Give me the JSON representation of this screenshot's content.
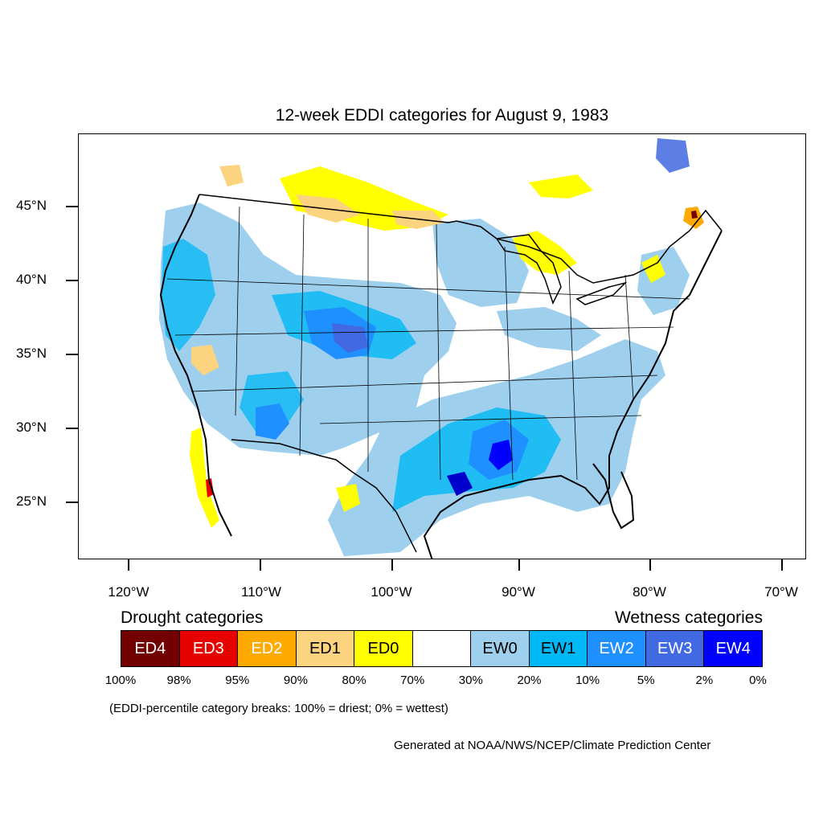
{
  "title": "12-week EDDI categories for August 9, 1983",
  "lat_labels": [
    "45°N",
    "40°N",
    "35°N",
    "30°N",
    "25°N"
  ],
  "lon_labels": [
    "120°W",
    "110°W",
    "100°W",
    "90°W",
    "80°W",
    "70°W"
  ],
  "legend": {
    "drought_heading": "Drought categories",
    "wetness_heading": "Wetness categories",
    "categories": [
      {
        "label": "ED4",
        "color": "#730000",
        "text_color": "#ffffff"
      },
      {
        "label": "ED3",
        "color": "#e60000",
        "text_color": "#ffffff"
      },
      {
        "label": "ED2",
        "color": "#ffaa00",
        "text_color": "#ffffff"
      },
      {
        "label": "ED1",
        "color": "#fcd37f",
        "text_color": "#000000"
      },
      {
        "label": "ED0",
        "color": "#ffff00",
        "text_color": "#000000"
      },
      {
        "label": "",
        "color": "#ffffff",
        "text_color": "#000000"
      },
      {
        "label": "EW0",
        "color": "#9ed0ee",
        "text_color": "#000000"
      },
      {
        "label": "EW1",
        "color": "#00b8f5",
        "text_color": "#000000"
      },
      {
        "label": "EW2",
        "color": "#1e90ff",
        "text_color": "#ffffff"
      },
      {
        "label": "EW3",
        "color": "#4169e1",
        "text_color": "#ffffff"
      },
      {
        "label": "EW4",
        "color": "#0000ff",
        "text_color": "#ffffff"
      }
    ],
    "percent_breaks": [
      "100%",
      "98%",
      "95%",
      "90%",
      "80%",
      "70%",
      "30%",
      "20%",
      "10%",
      "5%",
      "2%",
      "0%"
    ]
  },
  "note": "(EDDI-percentile category breaks: 100% = driest; 0% = wettest)",
  "credit": "Generated at NOAA/NWS/NCEP/Climate Prediction Center"
}
